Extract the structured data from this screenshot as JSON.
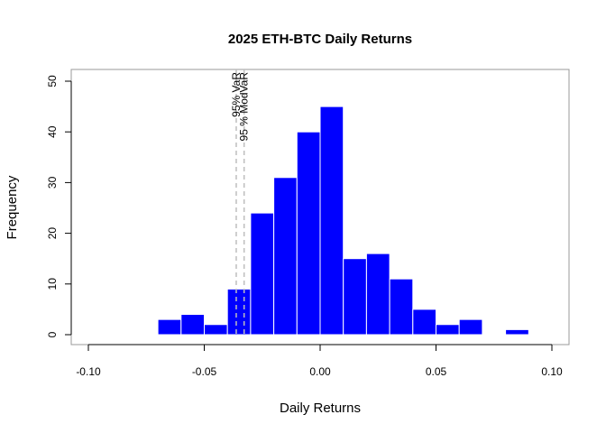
{
  "chart_data": {
    "type": "bar",
    "title": "2025 ETH-BTC Daily Returns",
    "xlabel": "Daily Returns",
    "ylabel": "Frequency",
    "xlim": [
      -0.1,
      0.1
    ],
    "ylim": [
      0,
      50
    ],
    "x_ticks": [
      -0.1,
      -0.05,
      0.0,
      0.05,
      0.1
    ],
    "x_tick_labels": [
      "-0.10",
      "-0.05",
      "0.00",
      "0.05",
      "0.10"
    ],
    "y_ticks": [
      0,
      10,
      20,
      30,
      40,
      50
    ],
    "y_tick_labels": [
      "0",
      "10",
      "20",
      "30",
      "40",
      "50"
    ],
    "bin_width": 0.01,
    "bins": [
      {
        "x0": -0.07,
        "x1": -0.06,
        "count": 3
      },
      {
        "x0": -0.06,
        "x1": -0.05,
        "count": 4
      },
      {
        "x0": -0.05,
        "x1": -0.04,
        "count": 2
      },
      {
        "x0": -0.04,
        "x1": -0.03,
        "count": 9
      },
      {
        "x0": -0.03,
        "x1": -0.02,
        "count": 24
      },
      {
        "x0": -0.02,
        "x1": -0.01,
        "count": 31
      },
      {
        "x0": -0.01,
        "x1": 0.0,
        "count": 40
      },
      {
        "x0": 0.0,
        "x1": 0.01,
        "count": 45
      },
      {
        "x0": 0.01,
        "x1": 0.02,
        "count": 15
      },
      {
        "x0": 0.02,
        "x1": 0.03,
        "count": 16
      },
      {
        "x0": 0.03,
        "x1": 0.04,
        "count": 11
      },
      {
        "x0": 0.04,
        "x1": 0.05,
        "count": 5
      },
      {
        "x0": 0.05,
        "x1": 0.06,
        "count": 2
      },
      {
        "x0": 0.06,
        "x1": 0.07,
        "count": 3
      },
      {
        "x0": 0.07,
        "x1": 0.08,
        "count": 0
      },
      {
        "x0": 0.08,
        "x1": 0.09,
        "count": 1
      }
    ],
    "reference_lines": [
      {
        "label": "95% VaR",
        "x": -0.0362
      },
      {
        "label": "95 % ModVaR",
        "x": -0.0328
      }
    ],
    "bar_color": "#0000ff",
    "bar_border_color": "#ffffff",
    "reference_line_color": "#bebebe",
    "grid": false,
    "legend": "none"
  }
}
